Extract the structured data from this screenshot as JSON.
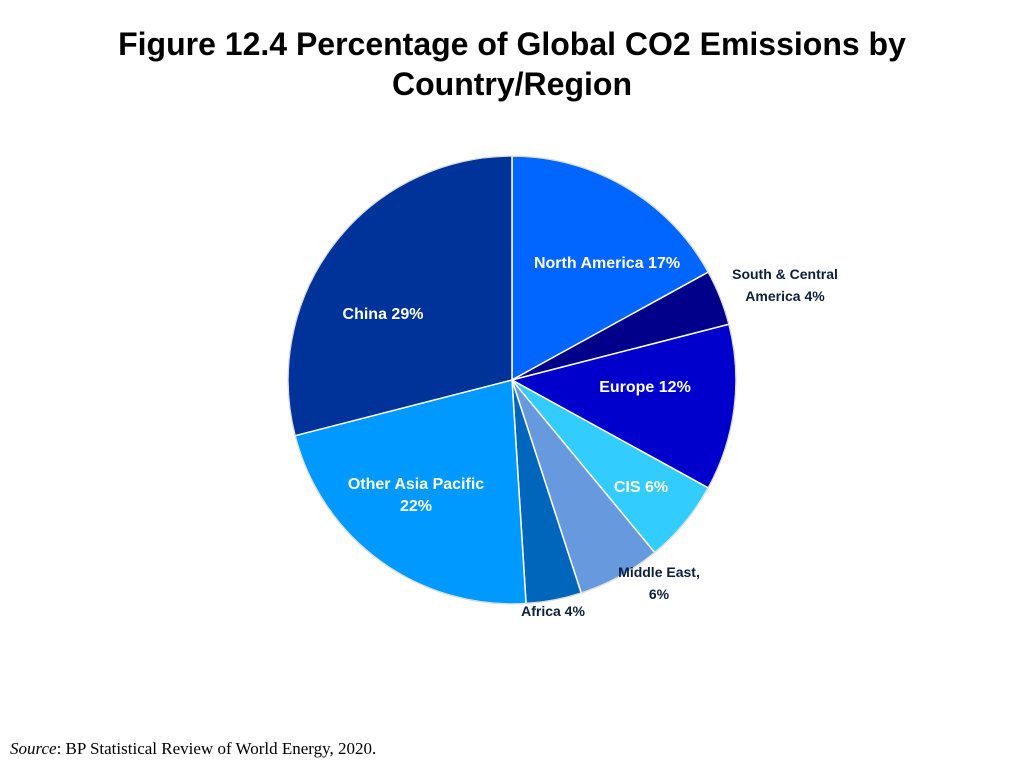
{
  "page": {
    "title_line1": "Figure 12.4 Percentage of Global CO2 Emissions by",
    "title_line2": "Country/Region",
    "source_label": "Source",
    "source_text": ": BP Statistical Review of World Energy, 2020."
  },
  "chart_data": {
    "type": "pie",
    "title": "Figure 12.4 Percentage of Global CO2 Emissions by Country/Region",
    "start_angle_deg": 0,
    "direction": "clockwise",
    "slices": [
      {
        "name": "North America",
        "value": 17,
        "label": "North America 17%",
        "label_lines": [
          "North America 17%"
        ],
        "color": "#0066ff",
        "label_color": "#ffffff",
        "label_position": "inside"
      },
      {
        "name": "South & Central America",
        "value": 4,
        "label": "South & Central America 4%",
        "label_lines": [
          "South & Central",
          "America 4%"
        ],
        "color": "#00008b",
        "label_color": "#0b1e3d",
        "label_position": "outside"
      },
      {
        "name": "Europe",
        "value": 12,
        "label": "Europe 12%",
        "label_lines": [
          "Europe 12%"
        ],
        "color": "#0000cd",
        "label_color": "#ffffff",
        "label_position": "inside"
      },
      {
        "name": "CIS",
        "value": 6,
        "label": "CIS 6%",
        "label_lines": [
          "CIS 6%"
        ],
        "color": "#33ccff",
        "label_color": "#ffffff",
        "label_position": "inside"
      },
      {
        "name": "Middle East",
        "value": 6,
        "label": "Middle East, 6%",
        "label_lines": [
          "Middle East,",
          "6%"
        ],
        "color": "#6699dd",
        "label_color": "#0b1e3d",
        "label_position": "outside"
      },
      {
        "name": "Africa",
        "value": 4,
        "label": "Africa 4%",
        "label_lines": [
          "Africa 4%"
        ],
        "color": "#0066bb",
        "label_color": "#0b1e3d",
        "label_position": "outside"
      },
      {
        "name": "Other Asia Pacific",
        "value": 22,
        "label": "Other Asia Pacific 22%",
        "label_lines": [
          "Other Asia Pacific",
          "22%"
        ],
        "color": "#0099ff",
        "label_color": "#ffffff",
        "label_position": "inside"
      },
      {
        "name": "China",
        "value": 29,
        "label": "China 29%",
        "label_lines": [
          "China 29%"
        ],
        "color": "#003399",
        "label_color": "#ffffff",
        "label_position": "inside"
      }
    ],
    "legend": "none",
    "slice_border_color": "#ffffff"
  }
}
